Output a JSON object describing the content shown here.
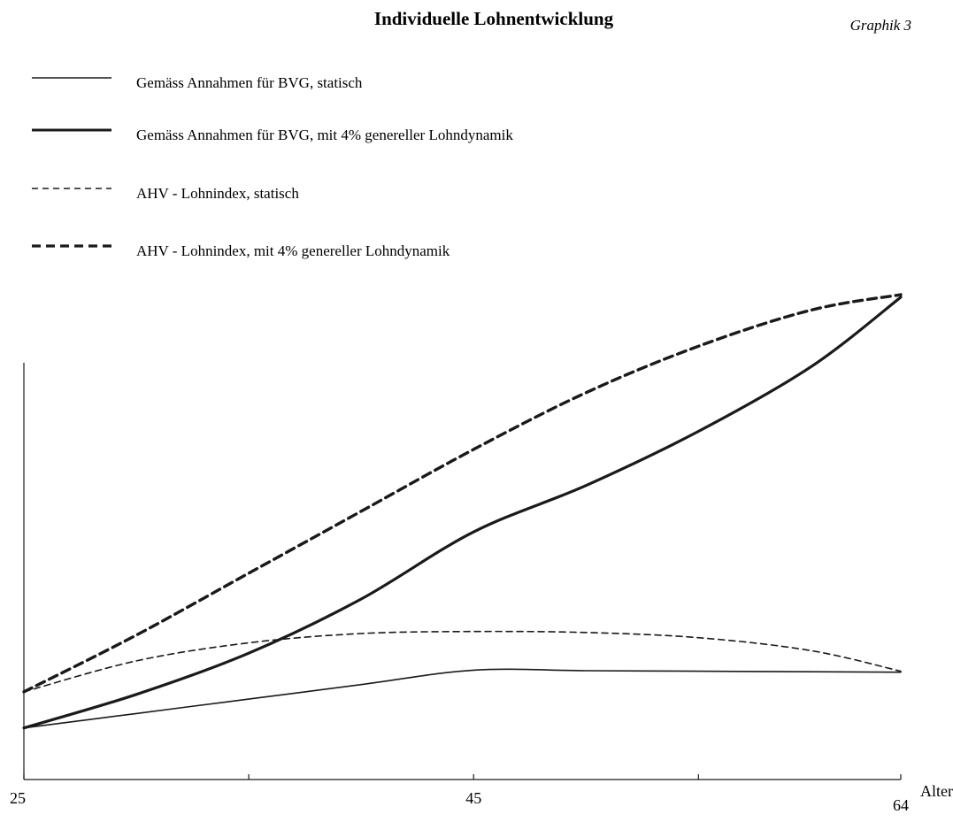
{
  "header": {
    "title": "Individuelle Lohnentwicklung",
    "figure_label": "Graphik 3"
  },
  "colors": {
    "ink": "#1a1a1a",
    "paper": "#ffffff"
  },
  "chart_data": {
    "type": "line",
    "title": "Individuelle Lohnentwicklung",
    "xlabel": "Alter",
    "ylabel": "",
    "x_ticks": [
      25,
      45,
      64
    ],
    "x_minor_ticks": [
      35,
      55
    ],
    "xlim": [
      25,
      64
    ],
    "ylim": [
      0,
      100
    ],
    "y_tick_labels": "none",
    "grid": false,
    "legend_position": "top-left",
    "series": [
      {
        "name": "Gemäss Annahmen für BVG, statisch",
        "style": "thin-solid",
        "x": [
          25,
          30,
          35,
          40,
          45,
          50,
          55,
          60,
          64
        ],
        "y": [
          10,
          12.8,
          15.6,
          18.4,
          21.2,
          21.1,
          21,
          20.9,
          20.8
        ]
      },
      {
        "name": "Gemäss Annahmen für BVG, mit 4% genereller Lohndynamik",
        "style": "thick-solid",
        "x": [
          25,
          30,
          35,
          40,
          45,
          50,
          55,
          60,
          64
        ],
        "y": [
          10,
          16.5,
          24.5,
          35,
          48,
          57,
          67.5,
          80,
          93.5
        ]
      },
      {
        "name": "AHV - Lohnindex, statisch",
        "style": "thin-dashed",
        "x": [
          25,
          30,
          35,
          40,
          45,
          50,
          55,
          60,
          64
        ],
        "y": [
          17,
          23,
          26.5,
          28.3,
          28.7,
          28.5,
          27.5,
          25,
          21
        ]
      },
      {
        "name": "AHV - Lohnindex, mit 4% genereller Lohndynamik",
        "style": "thick-dashed",
        "x": [
          25,
          30,
          35,
          40,
          45,
          50,
          55,
          60,
          64
        ],
        "y": [
          17,
          28,
          40,
          52,
          64,
          75,
          84,
          91,
          94
        ]
      }
    ]
  }
}
